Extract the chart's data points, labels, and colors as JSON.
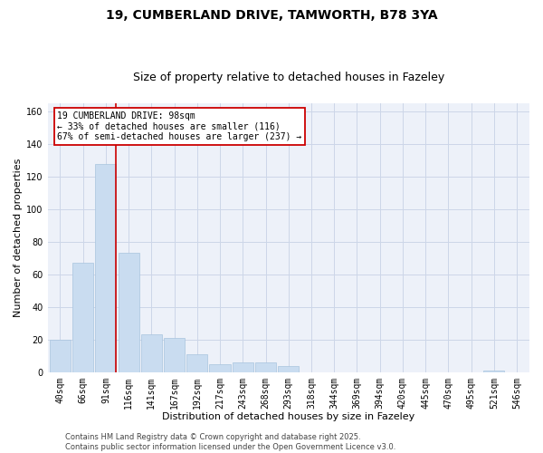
{
  "title_line1": "19, CUMBERLAND DRIVE, TAMWORTH, B78 3YA",
  "title_line2": "Size of property relative to detached houses in Fazeley",
  "xlabel": "Distribution of detached houses by size in Fazeley",
  "ylabel": "Number of detached properties",
  "bar_labels": [
    "40sqm",
    "66sqm",
    "91sqm",
    "116sqm",
    "141sqm",
    "167sqm",
    "192sqm",
    "217sqm",
    "243sqm",
    "268sqm",
    "293sqm",
    "318sqm",
    "344sqm",
    "369sqm",
    "394sqm",
    "420sqm",
    "445sqm",
    "470sqm",
    "495sqm",
    "521sqm",
    "546sqm"
  ],
  "bar_values": [
    20,
    67,
    128,
    73,
    23,
    21,
    11,
    5,
    6,
    6,
    4,
    0,
    0,
    0,
    0,
    0,
    0,
    0,
    0,
    1,
    0
  ],
  "bar_color": "#c9dcf0",
  "bar_edgecolor": "#a8c4de",
  "grid_color": "#ccd6e8",
  "background_color": "#edf1f9",
  "annotation_text": "19 CUMBERLAND DRIVE: 98sqm\n← 33% of detached houses are smaller (116)\n67% of semi-detached houses are larger (237) →",
  "annotation_box_color": "#ffffff",
  "annotation_box_edge": "#cc0000",
  "vline_color": "#cc0000",
  "vline_position": 2.425,
  "ylim": [
    0,
    165
  ],
  "yticks": [
    0,
    20,
    40,
    60,
    80,
    100,
    120,
    140,
    160
  ],
  "footer_line1": "Contains HM Land Registry data © Crown copyright and database right 2025.",
  "footer_line2": "Contains public sector information licensed under the Open Government Licence v3.0.",
  "title_fontsize": 10,
  "subtitle_fontsize": 9,
  "axis_label_fontsize": 8,
  "tick_fontsize": 7,
  "annotation_fontsize": 7,
  "footer_fontsize": 6
}
